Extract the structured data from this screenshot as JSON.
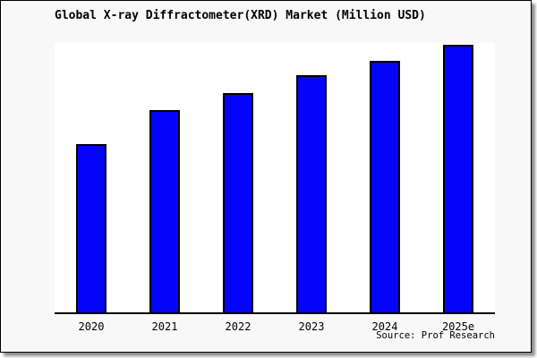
{
  "figure": {
    "background": "#f8f8f8",
    "plot_background": "#ffffff",
    "frame_border_color": "#000000",
    "shadow_color": "#8f8f8f",
    "axis_color": "#000000"
  },
  "chart_data": {
    "type": "bar",
    "title": "Global X-ray Diffractometer(XRD) Market (Million USD)",
    "categories": [
      "2020",
      "2021",
      "2022",
      "2023",
      "2024",
      "2025e"
    ],
    "values": [
      63,
      75.5,
      82,
      88.5,
      94,
      100
    ],
    "units": "relative index; chart shows no y-axis tick labels, values normalized to 2025e = 100 from bar heights",
    "xlabel": "",
    "ylabel": "",
    "ylim": [
      0,
      100.7
    ],
    "grid": false,
    "legend": false,
    "bar_color": "#0404fa",
    "bar_border_color": "#000000",
    "source_label": "Source: Prof Research"
  }
}
